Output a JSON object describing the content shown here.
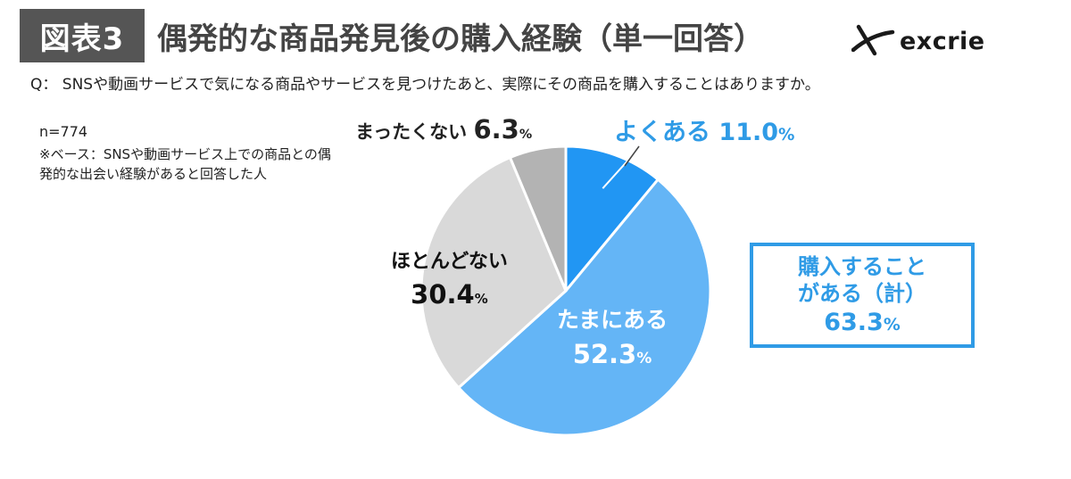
{
  "header": {
    "badge": "図表3",
    "title": "偶発的な商品発見後の購入経験（単一回答）",
    "logo_text": "excrie"
  },
  "question": "Q： SNSや動画サービスで気になる商品やサービスを見つけたあと、実際にその商品を購入することはありますか。",
  "notes": {
    "sample": "n=774",
    "base": "※ベース：SNSや動画サービス上での商品との偶発的な出会い経験があると回答した人"
  },
  "summary": {
    "line1": "購入すること",
    "line2": "がある（計）",
    "value": "63.3",
    "unit": "%"
  },
  "chart_data": {
    "type": "pie",
    "unit": "%",
    "start_angle_deg": 0,
    "direction": "clockwise",
    "slices": [
      {
        "label": "よくある",
        "value": 11.0,
        "display": "11.0",
        "color": "#2196f3"
      },
      {
        "label": "たまにある",
        "value": 52.3,
        "display": "52.3",
        "color": "#64b5f6"
      },
      {
        "label": "ほとんどない",
        "value": 30.4,
        "display": "30.4",
        "color": "#d9d9d9"
      },
      {
        "label": "まったくない",
        "value": 6.3,
        "display": "6.3",
        "color": "#b3b3b3"
      }
    ]
  }
}
